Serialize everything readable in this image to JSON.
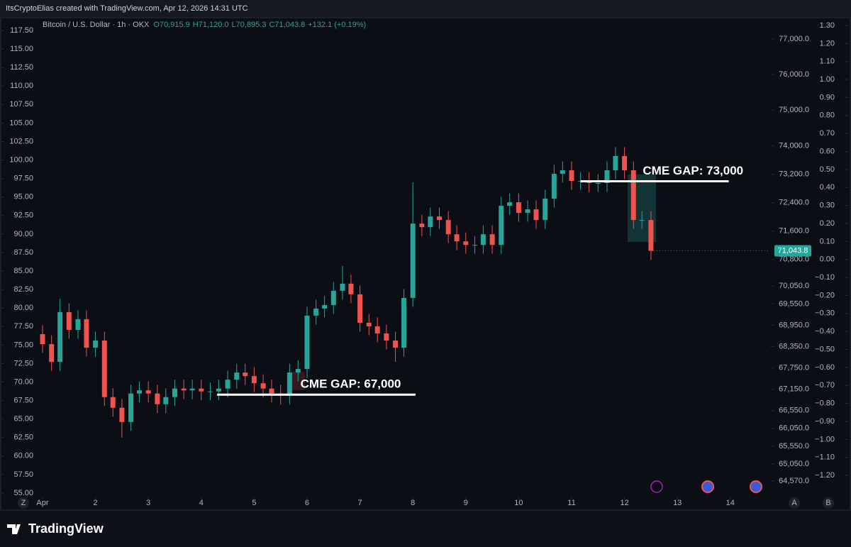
{
  "header": "ItsCryptoElias created with TradingView.com, Apr 12, 2026 14:31 UTC",
  "chart_data": {
    "type": "candlestick",
    "title": "Bitcoin / U.S. Dollar · 1h · OKX",
    "ohlc_legend": [
      "O70,915.9",
      "H71,120.0",
      "L70,895.3",
      "C71,043.8",
      "+132.1 (+0.19%)"
    ],
    "up_color": "#26a69a",
    "down_color": "#ef5350",
    "x": [
      1,
      1.17,
      1.33,
      1.5,
      1.67,
      1.83,
      2,
      2.17,
      2.33,
      2.5,
      2.67,
      2.83,
      3,
      3.17,
      3.33,
      3.5,
      3.67,
      3.83,
      4,
      4.17,
      4.33,
      4.5,
      4.67,
      4.83,
      5,
      5.17,
      5.33,
      5.5,
      5.67,
      5.83,
      6,
      6.17,
      6.33,
      6.5,
      6.67,
      6.83,
      7,
      7.17,
      7.33,
      7.5,
      7.67,
      7.83,
      8,
      8.17,
      8.33,
      8.5,
      8.67,
      8.83,
      9,
      9.17,
      9.33,
      9.5,
      9.67,
      9.83,
      10,
      10.17,
      10.33,
      10.5,
      10.67,
      10.83,
      11,
      11.17,
      11.33,
      11.5,
      11.67,
      11.83,
      12,
      12.17,
      12.33,
      12.5
    ],
    "open": [
      68700,
      68420,
      67920,
      69320,
      68820,
      69120,
      68320,
      68520,
      66930,
      66630,
      66230,
      67030,
      67120,
      67030,
      66730,
      66930,
      67170,
      67120,
      67170,
      67090,
      67090,
      67170,
      67420,
      67620,
      67520,
      67320,
      67170,
      67030,
      66970,
      67620,
      67720,
      69220,
      69420,
      69520,
      69920,
      70120,
      69820,
      69020,
      68920,
      68720,
      68520,
      68320,
      69720,
      71810,
      71710,
      72010,
      71910,
      71510,
      71310,
      71210,
      71210,
      71510,
      71210,
      72310,
      72410,
      72110,
      72210,
      71910,
      72510,
      73210,
      73310,
      73010,
      73010,
      72950,
      72950,
      73310,
      73710,
      73310,
      71910,
      71910
    ],
    "high": [
      68950,
      68670,
      69700,
      69570,
      69370,
      69370,
      68770,
      68770,
      67180,
      66880,
      67280,
      67370,
      67370,
      67280,
      67180,
      67420,
      67420,
      67420,
      67420,
      67340,
      67420,
      67670,
      67870,
      67870,
      67770,
      67570,
      67420,
      67280,
      67870,
      67970,
      69470,
      69670,
      69770,
      70170,
      70620,
      70370,
      70070,
      69270,
      69170,
      68970,
      68770,
      69970,
      72970,
      72060,
      72260,
      72260,
      72160,
      71760,
      71560,
      71460,
      71760,
      71760,
      72560,
      72660,
      72660,
      72460,
      72460,
      72760,
      73460,
      73560,
      73560,
      73260,
      73260,
      73200,
      73560,
      73960,
      73960,
      73560,
      72160,
      72160
    ],
    "low": [
      68170,
      67670,
      67670,
      68570,
      68570,
      68070,
      68070,
      66680,
      66380,
      65790,
      65980,
      66780,
      66780,
      66480,
      66480,
      66680,
      66870,
      66870,
      66840,
      66840,
      66840,
      66920,
      67170,
      67270,
      67070,
      66920,
      66780,
      66720,
      66720,
      67370,
      67470,
      68970,
      69170,
      69270,
      69670,
      69570,
      68770,
      68670,
      68470,
      68270,
      67920,
      68070,
      69470,
      71460,
      71460,
      71660,
      71260,
      71060,
      70960,
      70960,
      70960,
      70960,
      70960,
      72060,
      71860,
      71860,
      71660,
      71660,
      72260,
      72960,
      72760,
      72760,
      72700,
      72700,
      72700,
      73060,
      73060,
      71660,
      71660,
      70790
    ],
    "close": [
      68420,
      67920,
      69320,
      68820,
      69120,
      68320,
      68520,
      66930,
      66630,
      66230,
      67030,
      67120,
      67030,
      66730,
      66930,
      67170,
      67120,
      67170,
      67090,
      67090,
      67170,
      67420,
      67620,
      67520,
      67320,
      67170,
      67030,
      66970,
      67620,
      67720,
      69220,
      69420,
      69520,
      69920,
      70120,
      69820,
      69020,
      68920,
      68720,
      68520,
      68320,
      69720,
      71810,
      71710,
      72010,
      71910,
      71510,
      71310,
      71210,
      71210,
      71510,
      71210,
      72310,
      72410,
      72110,
      72210,
      71910,
      72510,
      73210,
      73310,
      73010,
      73010,
      72950,
      72950,
      73310,
      73710,
      73310,
      71910,
      71910,
      71043.8
    ],
    "xlim": [
      0.866,
      14.74
    ],
    "xticks": [
      {
        "value": 1,
        "label": "Apr"
      },
      2,
      3,
      4,
      5,
      6,
      7,
      8,
      9,
      10,
      11,
      12,
      13,
      14
    ],
    "ylim": [
      64131,
      77539
    ],
    "yticks": [
      {
        "value": 77000,
        "label": "77,000.0"
      },
      {
        "value": 76000,
        "label": "76,000.0"
      },
      {
        "value": 75000,
        "label": "75,000.0"
      },
      {
        "value": 74000,
        "label": "74,000.0"
      },
      {
        "value": 73200,
        "label": "73,200.0"
      },
      {
        "value": 72400,
        "label": "72,400.0"
      },
      {
        "value": 71600,
        "label": "71,600.0"
      },
      {
        "value": 70800,
        "label": "70,800.0"
      },
      {
        "value": 70050,
        "label": "70,050.0"
      },
      {
        "value": 69550,
        "label": "69,550.0"
      },
      {
        "value": 68950,
        "label": "68,950.0"
      },
      {
        "value": 68350,
        "label": "68,350.0"
      },
      {
        "value": 67750,
        "label": "67,750.0"
      },
      {
        "value": 67150,
        "label": "67,150.0"
      },
      {
        "value": 66550,
        "label": "66,550.0"
      },
      {
        "value": 66050,
        "label": "66,050.0"
      },
      {
        "value": 65550,
        "label": "65,550.0"
      },
      {
        "value": 65050,
        "label": "65,050.0"
      },
      {
        "value": 64570,
        "label": "64,570.0"
      }
    ],
    "y2lim": [
      54.52,
      118.94
    ],
    "y2ticks": [
      {
        "value": 117.5,
        "label": "117.50"
      },
      {
        "value": 115,
        "label": "115.00"
      },
      {
        "value": 112.5,
        "label": "112.50"
      },
      {
        "value": 110,
        "label": "110.00"
      },
      {
        "value": 107.5,
        "label": "107.50"
      },
      {
        "value": 105,
        "label": "105.00"
      },
      {
        "value": 102.5,
        "label": "102.50"
      },
      {
        "value": 100,
        "label": "100.00"
      },
      {
        "value": 97.5,
        "label": "97.50"
      },
      {
        "value": 95,
        "label": "95.00"
      },
      {
        "value": 92.5,
        "label": "92.50"
      },
      {
        "value": 90,
        "label": "90.00"
      },
      {
        "value": 87.5,
        "label": "87.50"
      },
      {
        "value": 85,
        "label": "85.00"
      },
      {
        "value": 82.5,
        "label": "82.50"
      },
      {
        "value": 80,
        "label": "80.00"
      },
      {
        "value": 77.5,
        "label": "77.50"
      },
      {
        "value": 75,
        "label": "75.00"
      },
      {
        "value": 72.5,
        "label": "72.50"
      },
      {
        "value": 70,
        "label": "70.00"
      },
      {
        "value": 67.5,
        "label": "67.50"
      },
      {
        "value": 65,
        "label": "65.00"
      },
      {
        "value": 62.5,
        "label": "62.50"
      },
      {
        "value": 60,
        "label": "60.00"
      },
      {
        "value": 57.5,
        "label": "57.50"
      },
      {
        "value": 55,
        "label": "55.00"
      }
    ],
    "y3lim": [
      -1.318,
      1.3315
    ],
    "y3ticks": [
      {
        "value": 1.3,
        "label": "1.30"
      },
      {
        "value": 1.2,
        "label": "1.20"
      },
      {
        "value": 1.1,
        "label": "1.10"
      },
      {
        "value": 1.0,
        "label": "1.00"
      },
      {
        "value": 0.9,
        "label": "0.90"
      },
      {
        "value": 0.8,
        "label": "0.80"
      },
      {
        "value": 0.7,
        "label": "0.70"
      },
      {
        "value": 0.6,
        "label": "0.60"
      },
      {
        "value": 0.5,
        "label": "0.50"
      },
      {
        "value": 0.4,
        "label": "0.40"
      },
      {
        "value": 0.3,
        "label": "0.30"
      },
      {
        "value": 0.2,
        "label": "0.20"
      },
      {
        "value": 0.1,
        "label": "0.10"
      },
      {
        "value": 0,
        "label": "0.00"
      },
      {
        "value": -0.1,
        "label": "−0.10"
      },
      {
        "value": -0.2,
        "label": "−0.20"
      },
      {
        "value": -0.3,
        "label": "−0.30"
      },
      {
        "value": -0.4,
        "label": "−0.40"
      },
      {
        "value": -0.5,
        "label": "−0.50"
      },
      {
        "value": -0.6,
        "label": "−0.60"
      },
      {
        "value": -0.7,
        "label": "−0.70"
      },
      {
        "value": -0.8,
        "label": "−0.80"
      },
      {
        "value": -0.9,
        "label": "−0.90"
      },
      {
        "value": -1.0,
        "label": "−1.00"
      },
      {
        "value": -1.1,
        "label": "−1.10"
      },
      {
        "value": -1.2,
        "label": "−1.20"
      }
    ],
    "last_price": {
      "value": 71043.8,
      "label": "71,043.8"
    },
    "annotations": [
      {
        "text": "CME GAP: 67,000",
        "value": 67000,
        "x": [
          4.3,
          8.05
        ]
      },
      {
        "text": "CME GAP: 73,000",
        "value": 73000,
        "x": [
          11.17,
          13.97
        ]
      }
    ]
  },
  "toolbar": [
    "Z",
    "A",
    "B"
  ],
  "footer": "TradingView"
}
